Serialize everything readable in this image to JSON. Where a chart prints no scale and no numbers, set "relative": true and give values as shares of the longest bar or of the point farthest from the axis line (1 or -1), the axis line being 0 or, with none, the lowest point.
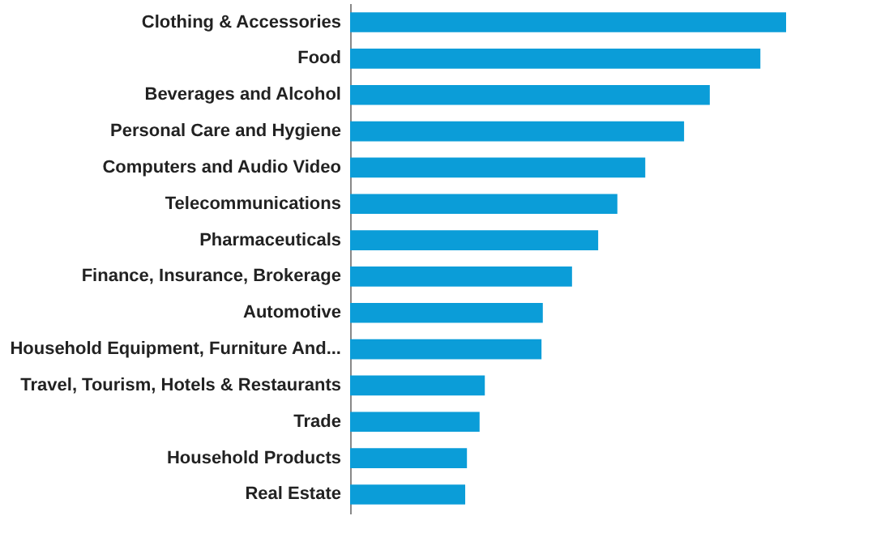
{
  "chart_data": {
    "type": "bar",
    "orientation": "horizontal",
    "relative": true,
    "color": "#0b9dd8",
    "categories": [
      "Clothing & Accessories",
      "Food",
      "Beverages and Alcohol",
      "Personal Care and Hygiene",
      "Computers and Audio Video",
      "Telecommunications",
      "Pharmaceuticals",
      "Finance, Insurance, Brokerage",
      "Automotive",
      "Household Equipment, Furniture And...",
      "Travel, Tourism, Hotels & Restaurants",
      "Trade",
      "Household Products",
      "Real Estate"
    ],
    "values": [
      1,
      0.941,
      0.825,
      0.766,
      0.677,
      0.613,
      0.569,
      0.509,
      0.442,
      0.439,
      0.309,
      0.297,
      0.268,
      0.264
    ]
  }
}
